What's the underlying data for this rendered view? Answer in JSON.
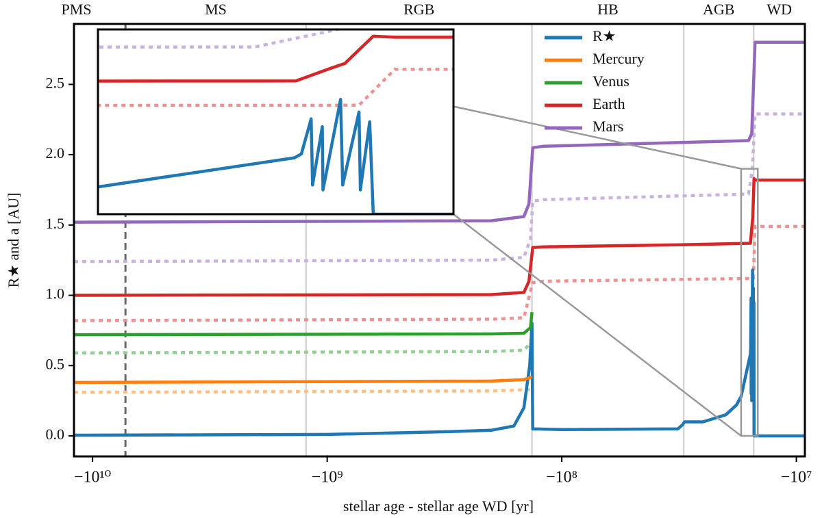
{
  "chart_data": {
    "type": "line",
    "xscale": "negative-log",
    "xlabel": "stellar age - stellar age WD [yr]",
    "ylabel": "R★ and a [AU]",
    "xlim": [
      -12000000000.0,
      -9200000.0
    ],
    "xticks": [
      {
        "value": -10000000000.0,
        "label": "−10¹⁰"
      },
      {
        "value": -1000000000.0,
        "label": "−10⁹"
      },
      {
        "value": -100000000.0,
        "label": "−10⁸"
      },
      {
        "value": -10000000.0,
        "label": "−10⁷"
      }
    ],
    "ylim": [
      -0.146,
      2.93
    ],
    "yticks": [
      {
        "value": 0,
        "label": "0.0"
      },
      0.5,
      {
        "value": 1,
        "label": "1.0"
      },
      1.5,
      {
        "value": 2,
        "label": "2.0"
      },
      2.5
    ],
    "phases": [
      "PMS",
      "MS",
      "RGB",
      "HB",
      "AGB",
      "WD"
    ],
    "phase_boundaries": [
      -7240000000.0,
      -1230000000.0,
      -134000000.0,
      -30200000.0,
      -15200000.0
    ],
    "boundary_styles": [
      "dashed",
      "solid",
      "solid",
      "solid",
      "solid"
    ],
    "inset": {
      "xlim": [
        -17200000.0,
        -14600000.0
      ],
      "ylim": [
        0,
        1.9
      ]
    },
    "series": [
      {
        "name": "R★",
        "color": "#1f77b4",
        "style": "solid",
        "x": [
          -12000000000.0,
          -1000000000.0,
          -300000000.0,
          -200000000.0,
          -160000000.0,
          -145000000.0,
          -137000000.0,
          -134000000.0,
          -133000000.0,
          -100000000.0,
          -32000000.0,
          -30500000.0,
          -30000000.0,
          -25000000.0,
          -20000000.0,
          -18000000.0,
          -17200000.0,
          -15710000.0,
          -15660000.0,
          -15590000.0,
          -15580000.0,
          -15510000.0,
          -15505000.0,
          -15380000.0,
          -15365000.0,
          -15250000.0,
          -15240000.0,
          -15175000.0,
          -15150000.0,
          -9200000.0
        ],
        "values": [
          0.005,
          0.01,
          0.03,
          0.04,
          0.07,
          0.2,
          0.5,
          0.8,
          0.05,
          0.045,
          0.05,
          0.08,
          0.1,
          0.1,
          0.15,
          0.22,
          0.28,
          0.58,
          0.62,
          0.98,
          0.3,
          0.9,
          0.25,
          1.18,
          0.3,
          1.05,
          0.25,
          0.95,
          0.0,
          0.0
        ]
      },
      {
        "name": "Mercury",
        "color": "#ff7f0e",
        "style": "solid",
        "x": [
          -12000000000.0,
          -200000000.0,
          -145000000.0,
          -134000000.0
        ],
        "values": [
          0.38,
          0.39,
          0.4,
          0.42
        ]
      },
      {
        "name": "Venus",
        "color": "#2ca02c",
        "style": "solid",
        "x": [
          -12000000000.0,
          -200000000.0,
          -145000000.0,
          -136000000.0,
          -134000000.0
        ],
        "values": [
          0.72,
          0.725,
          0.73,
          0.77,
          0.88
        ]
      },
      {
        "name": "Earth",
        "color": "#d62728",
        "style": "solid",
        "x": [
          -12000000000.0,
          -200000000.0,
          -145000000.0,
          -138000000.0,
          -133000000.0,
          -120000000.0,
          -30000000.0,
          -15700000.0,
          -15450000.0,
          -15350000.0,
          -15150000.0,
          -15000000.0,
          -9200000.0
        ],
        "values": [
          1.0,
          1.005,
          1.02,
          1.1,
          1.34,
          1.345,
          1.36,
          1.37,
          1.5,
          1.55,
          1.83,
          1.82,
          1.82
        ]
      },
      {
        "name": "Mars",
        "color": "#9467bd",
        "style": "solid",
        "x": [
          -12000000000.0,
          -200000000.0,
          -145000000.0,
          -138000000.0,
          -133000000.0,
          -120000000.0,
          -16000000.0,
          -15500000.0,
          -15000000.0,
          -9200000.0
        ],
        "values": [
          1.52,
          1.53,
          1.56,
          1.65,
          2.05,
          2.06,
          2.1,
          2.15,
          2.8,
          2.8
        ]
      },
      {
        "color": "#ffbf86",
        "style": "dotted",
        "x": [
          -12000000000.0,
          -200000000.0,
          -136000000.0
        ],
        "values": [
          0.31,
          0.32,
          0.33
        ]
      },
      {
        "color": "#95cf95",
        "style": "dotted",
        "x": [
          -12000000000.0,
          -200000000.0,
          -145000000.0,
          -136000000.0
        ],
        "values": [
          0.59,
          0.6,
          0.61,
          0.66
        ]
      },
      {
        "color": "#eb9393",
        "style": "dotted",
        "x": [
          -12000000000.0,
          -200000000.0,
          -145000000.0,
          -133000000.0,
          -120000000.0,
          -15250000.0,
          -15000000.0,
          -9200000.0
        ],
        "values": [
          0.82,
          0.83,
          0.84,
          1.09,
          1.1,
          1.12,
          1.49,
          1.49
        ]
      },
      {
        "color": "#c9b3de",
        "style": "dotted",
        "x": [
          -12000000000.0,
          -200000000.0,
          -145000000.0,
          -136000000.0,
          -133000000.0,
          -120000000.0,
          -16000000.0,
          -15400000.0,
          -15000000.0,
          -9200000.0
        ],
        "values": [
          1.24,
          1.25,
          1.27,
          1.4,
          1.67,
          1.68,
          1.72,
          1.9,
          2.29,
          2.29
        ]
      }
    ]
  }
}
